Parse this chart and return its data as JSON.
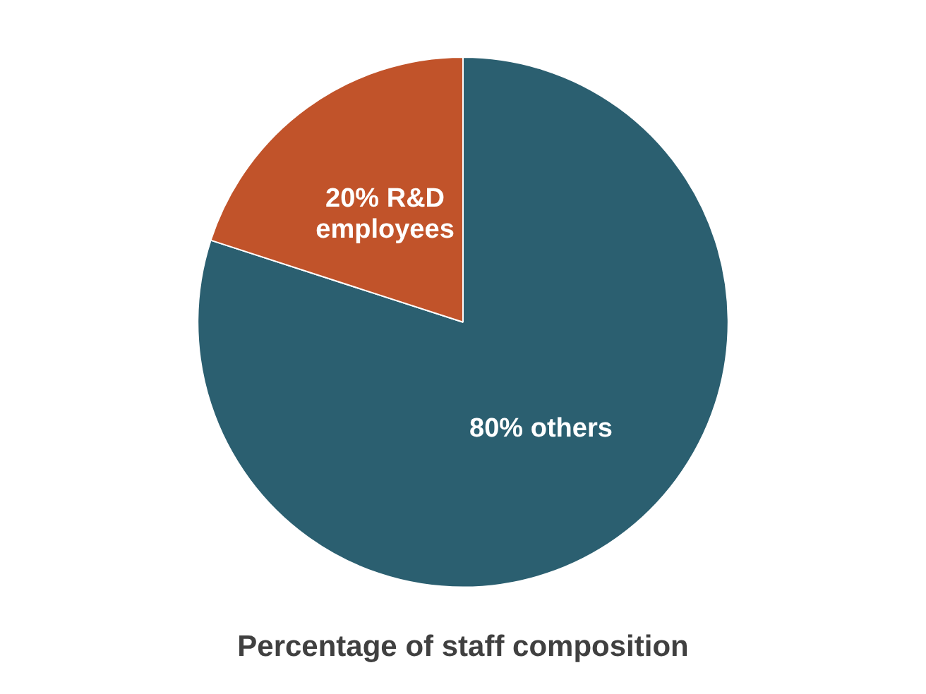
{
  "chart_data": {
    "type": "pie",
    "title": "Percentage of staff composition",
    "categories": [
      "others",
      "R&D employees"
    ],
    "values": [
      80,
      20
    ],
    "colors": [
      "#2b5f70",
      "#c1532a"
    ],
    "value_labels": [
      "80%",
      "20%"
    ],
    "legend": false
  }
}
